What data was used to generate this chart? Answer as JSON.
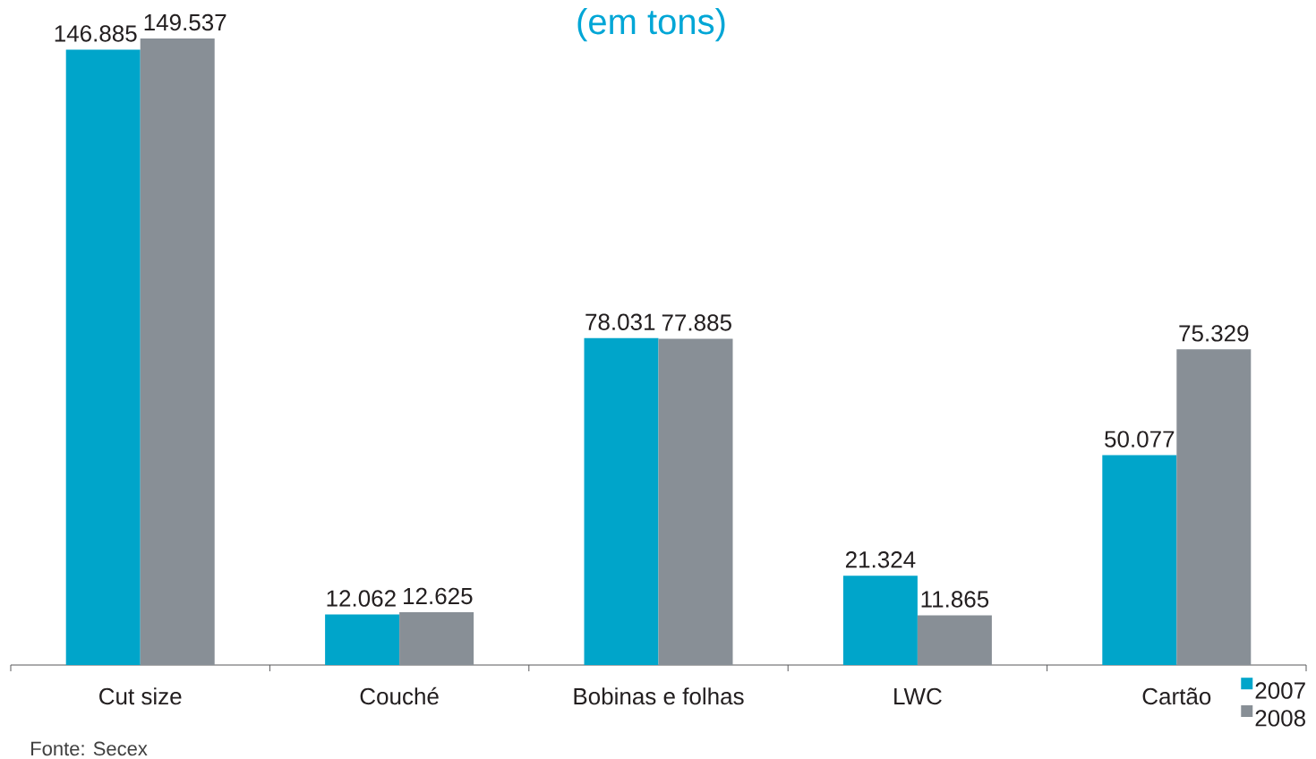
{
  "chart_data": {
    "type": "bar",
    "subtitle": "(em tons)",
    "categories": [
      "Cut size",
      "Couché",
      "Bobinas e folhas",
      "LWC",
      "Cartão"
    ],
    "series": [
      {
        "name": "2007",
        "color": "#00a5ca",
        "values": [
          146885,
          12062,
          78031,
          21324,
          50077
        ],
        "value_labels": [
          "146.885",
          "12.062",
          "78.031",
          "21.324",
          "50.077"
        ]
      },
      {
        "name": "2008",
        "color": "#888f96",
        "values": [
          149537,
          12625,
          77885,
          11865,
          75329
        ],
        "value_labels": [
          "149.537",
          "12.625",
          "77.885",
          "11.865",
          "75.329"
        ]
      }
    ],
    "legend": "bottom right",
    "annotations": [
      "Fonte: Secex"
    ]
  }
}
